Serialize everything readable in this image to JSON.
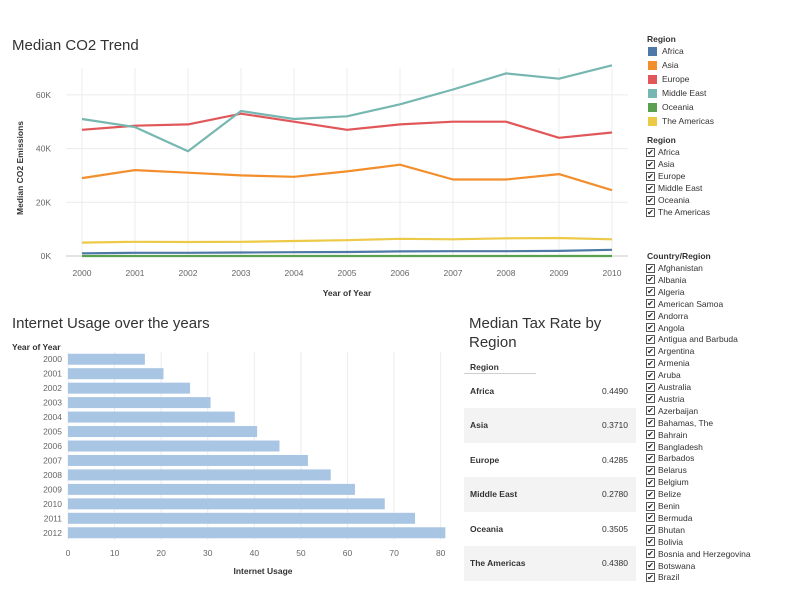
{
  "colors": {
    "Africa": "#4e79a7",
    "Asia": "#f28e2b",
    "Europe": "#e15759",
    "Middle East": "#76b7b2",
    "Oceania": "#59a14f",
    "The Americas": "#edc948",
    "bar": "#a9c5e4",
    "grid": "#ececec",
    "axis_text": "#666666"
  },
  "legend": {
    "title": "Region",
    "items": [
      "Africa",
      "Asia",
      "Europe",
      "Middle East",
      "Oceania",
      "The Americas"
    ]
  },
  "region_filter": {
    "title": "Region",
    "items": [
      "Africa",
      "Asia",
      "Europe",
      "Middle East",
      "Oceania",
      "The Americas"
    ]
  },
  "country_filter": {
    "title": "Country/Region",
    "items": [
      "Afghanistan",
      "Albania",
      "Algeria",
      "American Samoa",
      "Andorra",
      "Angola",
      "Antigua and Barbuda",
      "Argentina",
      "Armenia",
      "Aruba",
      "Australia",
      "Austria",
      "Azerbaijan",
      "Bahamas, The",
      "Bahrain",
      "Bangladesh",
      "Barbados",
      "Belarus",
      "Belgium",
      "Belize",
      "Benin",
      "Bermuda",
      "Bhutan",
      "Bolivia",
      "Bosnia and Herzegovina",
      "Botswana",
      "Brazil"
    ]
  },
  "tax_table": {
    "title_line1": "Median Tax Rate by",
    "title_line2": "Region",
    "header": "Region",
    "rows": [
      {
        "region": "Africa",
        "value": "0.4490"
      },
      {
        "region": "Asia",
        "value": "0.3710"
      },
      {
        "region": "Europe",
        "value": "0.4285"
      },
      {
        "region": "Middle East",
        "value": "0.2780"
      },
      {
        "region": "Oceania",
        "value": "0.3505"
      },
      {
        "region": "The Americas",
        "value": "0.4380"
      }
    ]
  },
  "chart_data": [
    {
      "type": "line",
      "title": "Median CO2 Trend",
      "xlabel": "Year of Year",
      "ylabel": "Median CO2 Emissions",
      "x": [
        2000,
        2001,
        2002,
        2003,
        2004,
        2005,
        2006,
        2007,
        2008,
        2009,
        2010
      ],
      "yticks": [
        "0K",
        "20K",
        "40K",
        "60K"
      ],
      "ylim": [
        0,
        70000
      ],
      "grid": true,
      "legend_position": "right",
      "series": [
        {
          "name": "Africa",
          "values": [
            1000,
            1200,
            1200,
            1300,
            1400,
            1500,
            1700,
            1800,
            1800,
            1900,
            2300
          ]
        },
        {
          "name": "Asia",
          "values": [
            29000,
            32000,
            31000,
            30000,
            29500,
            31500,
            34000,
            28500,
            28500,
            30500,
            24500
          ]
        },
        {
          "name": "Europe",
          "values": [
            47000,
            48500,
            49000,
            53000,
            50000,
            47000,
            49000,
            50000,
            50000,
            44000,
            46000
          ]
        },
        {
          "name": "Middle East",
          "values": [
            51000,
            48000,
            39000,
            54000,
            51000,
            52000,
            56500,
            62000,
            68000,
            66000,
            71000
          ]
        },
        {
          "name": "Oceania",
          "values": [
            0,
            0,
            0,
            0,
            0,
            0,
            0,
            0,
            0,
            0,
            0
          ]
        },
        {
          "name": "The Americas",
          "values": [
            5000,
            5300,
            5200,
            5300,
            5600,
            5900,
            6400,
            6200,
            6600,
            6700,
            6200
          ]
        }
      ]
    },
    {
      "type": "bar",
      "orientation": "horizontal",
      "title": "Internet Usage over the years",
      "xlabel": "Internet Usage",
      "ylabel": "Year of Year",
      "categories": [
        "2000",
        "2001",
        "2002",
        "2003",
        "2004",
        "2005",
        "2006",
        "2007",
        "2008",
        "2009",
        "2010",
        "2011",
        "2012"
      ],
      "values": [
        16.5,
        20.5,
        26.2,
        30.6,
        35.8,
        40.6,
        45.4,
        51.5,
        56.4,
        61.6,
        68.0,
        74.5,
        81.0
      ],
      "xticks": [
        0,
        10,
        20,
        30,
        40,
        50,
        60,
        70,
        80
      ],
      "xlim": [
        0,
        82
      ],
      "grid": true
    }
  ]
}
